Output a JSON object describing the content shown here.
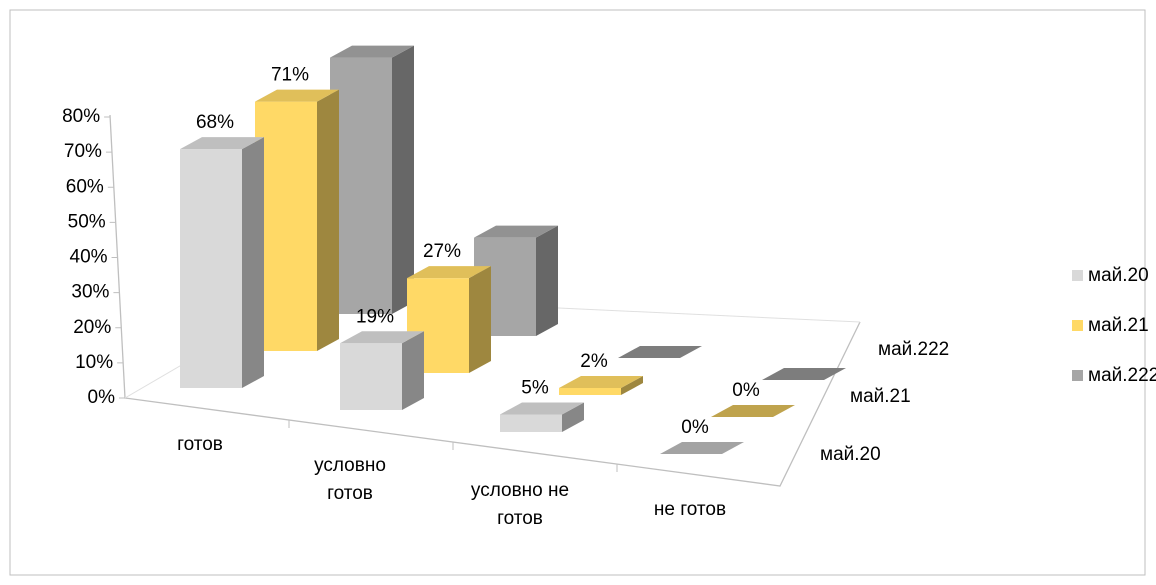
{
  "chart_data": {
    "type": "bar3d",
    "categories": [
      "готов",
      "условно готов",
      "условно не готов",
      "не готов"
    ],
    "series": [
      {
        "name": "май.20",
        "color": "#d9d9d9",
        "values": [
          68,
          19,
          5,
          0
        ],
        "value_labels": [
          "68%",
          "19%",
          "5%",
          "0%"
        ]
      },
      {
        "name": "май.21",
        "color": "#ffd966",
        "values": [
          71,
          27,
          2,
          0
        ],
        "value_labels": [
          "71%",
          "27%",
          "2%",
          "0%"
        ]
      },
      {
        "name": "май.222",
        "color": "#a6a6a6",
        "values": [
          73,
          28,
          0,
          0
        ]
      }
    ],
    "ylim": [
      0,
      80
    ],
    "yticks": [
      {
        "value": 0,
        "label": "0%"
      },
      {
        "value": 10,
        "label": "10%"
      },
      {
        "value": 20,
        "label": "20%"
      },
      {
        "value": 30,
        "label": "30%"
      },
      {
        "value": 40,
        "label": "40%"
      },
      {
        "value": 50,
        "label": "50%"
      },
      {
        "value": 60,
        "label": "60%"
      },
      {
        "value": 70,
        "label": "70%"
      },
      {
        "value": 80,
        "label": "80%"
      }
    ],
    "legend": "right"
  }
}
